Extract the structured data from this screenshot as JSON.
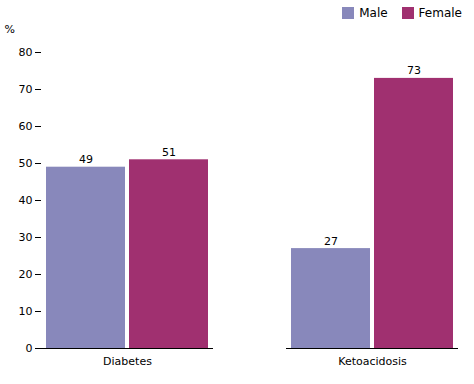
{
  "chart_data": {
    "type": "bar",
    "categories": [
      "Diabetes",
      "Ketoacidosis"
    ],
    "series": [
      {
        "name": "Male",
        "color": "#8888bb",
        "values": [
          49,
          27
        ]
      },
      {
        "name": "Female",
        "color": "#a03070",
        "values": [
          51,
          73
        ]
      }
    ],
    "ylabel": "%",
    "ylim": [
      0,
      80
    ],
    "yticks": [
      0,
      10,
      20,
      30,
      40,
      50,
      60,
      70,
      80
    ],
    "legend": "upper right",
    "data_labels": true,
    "grid": false
  }
}
